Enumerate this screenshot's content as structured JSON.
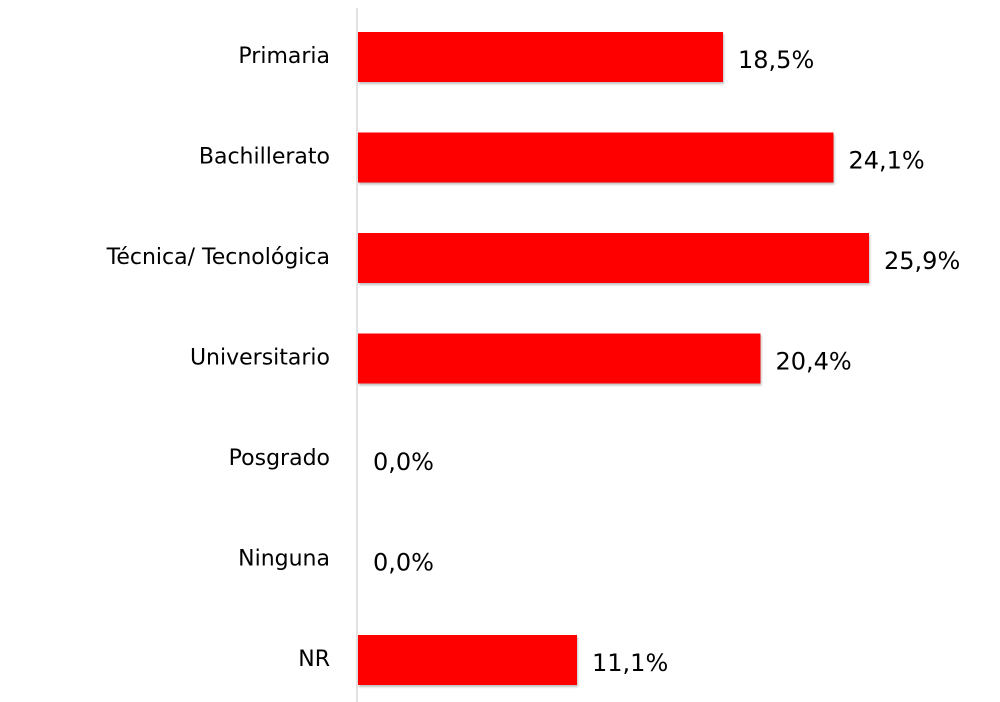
{
  "chart_data": {
    "type": "bar",
    "orientation": "horizontal",
    "categories": [
      "Primaria",
      "Bachillerato",
      "Técnica/ Tecnológica",
      "Universitario",
      "Posgrado",
      "Ninguna",
      "NR"
    ],
    "values": [
      18.5,
      24.1,
      25.9,
      20.4,
      0,
      0,
      11.1
    ],
    "value_labels": [
      "18,5%",
      "24,1%",
      "25,9%",
      "20,4%",
      "0,0%",
      "0,0%",
      "11,1%"
    ],
    "color": "#ff0000"
  }
}
